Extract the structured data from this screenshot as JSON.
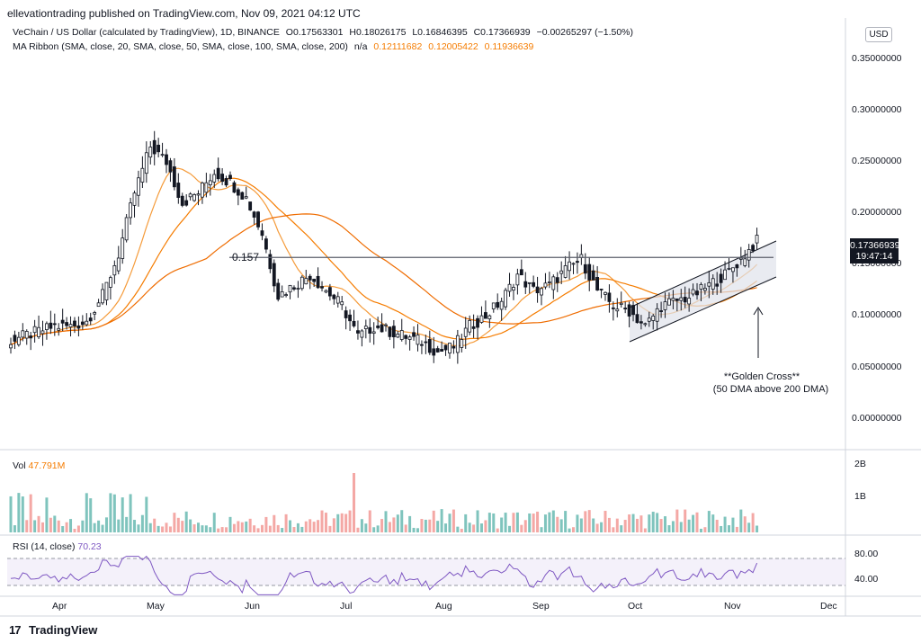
{
  "header": {
    "published": "ellevationtrading published on TradingView.com, Nov 09, 2021 04:12 UTC"
  },
  "legend": {
    "symbol": "VeChain / US Dollar (calculated by TradingView), 1D, BINANCE",
    "open": "O0.17563301",
    "high": "H0.18026175",
    "low": "L0.16846395",
    "close": "C0.17366939",
    "change": "−0.00265297 (−1.50%)",
    "ma_title": "MA Ribbon (SMA, close, 20, SMA, close, 50, SMA, close, 100, SMA, close, 200)",
    "ma_na": "n/a",
    "ma_values": [
      "0.12111682",
      "0.12005422",
      "0.11936639"
    ]
  },
  "currency": "USD",
  "price_badge": {
    "price": "0.17366939",
    "countdown": "19:47:14"
  },
  "annotations": {
    "level_label": "0.157",
    "golden_cross_line1": "**Golden Cross**",
    "golden_cross_line2": "(50 DMA above 200 DMA)"
  },
  "volume": {
    "label": "Vol",
    "value": "47.791M",
    "axis": [
      "2B",
      "1B"
    ]
  },
  "rsi": {
    "label": "RSI (14, close)",
    "value": "70.23",
    "axis": [
      "80.00",
      "40.00"
    ]
  },
  "footer": {
    "brand": "TradingView"
  },
  "colors": {
    "up": "#131722",
    "ma_fast": "#f57c00",
    "ma_slow": "#ef6c00",
    "rsi_line": "#7e57c2",
    "vol_up": "#26a69a",
    "vol_down": "#ef5350",
    "channel_fill": "#e0e3eb"
  },
  "chart_data": {
    "type": "line",
    "x_labels": [
      "Apr",
      "May",
      "Jun",
      "Jul",
      "Aug",
      "Sep",
      "Oct",
      "Nov",
      "Dec"
    ],
    "y_ticks": [
      0.35,
      0.3,
      0.25,
      0.2,
      0.15,
      0.1,
      0.05,
      0.0
    ],
    "y_tick_labels": [
      "0.35000000",
      "0.30000000",
      "0.25000000",
      "0.20000000",
      "0.15000000",
      "0.10000000",
      "0.05000000",
      "0.00000000"
    ],
    "ylim": [
      -0.03,
      0.39
    ],
    "series": [
      {
        "values": [
          0.075,
          0.08,
          0.085,
          0.09,
          0.09,
          0.095,
          0.12,
          0.16,
          0.22,
          0.265,
          0.25,
          0.21,
          0.22,
          0.24,
          0.23,
          0.215,
          0.18,
          0.12,
          0.13,
          0.14,
          0.125,
          0.11,
          0.08,
          0.09,
          0.085,
          0.08,
          0.075,
          0.065,
          0.07,
          0.09,
          0.1,
          0.115,
          0.14,
          0.125,
          0.13,
          0.145,
          0.155,
          0.125,
          0.11,
          0.105,
          0.09,
          0.11,
          0.115,
          0.12,
          0.13,
          0.14,
          0.155,
          0.173
        ]
      }
    ],
    "level": 0.157
  }
}
